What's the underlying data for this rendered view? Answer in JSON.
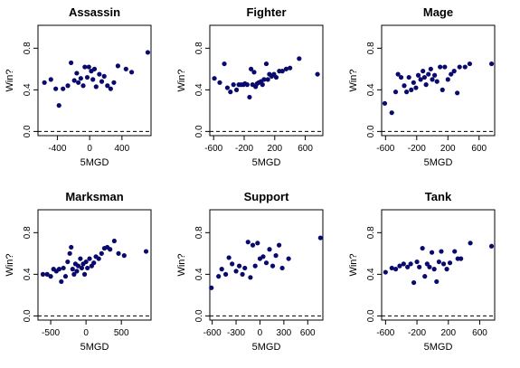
{
  "chart_data": [
    {
      "type": "scatter",
      "title": "Assassin",
      "xlabel": "5MGD",
      "ylabel": "Win?",
      "xticks": [
        -400,
        0,
        400
      ],
      "yticks": [
        0.0,
        0.4,
        0.8
      ],
      "xlim": [
        -640,
        760
      ],
      "ylim": [
        -0.04,
        1.02
      ],
      "reference_line": 0.0,
      "points": [
        [
          -560,
          0.47
        ],
        [
          -480,
          0.5
        ],
        [
          -420,
          0.41
        ],
        [
          -380,
          0.25
        ],
        [
          -330,
          0.41
        ],
        [
          -270,
          0.44
        ],
        [
          -230,
          0.66
        ],
        [
          -190,
          0.49
        ],
        [
          -160,
          0.56
        ],
        [
          -140,
          0.47
        ],
        [
          -110,
          0.51
        ],
        [
          -80,
          0.44
        ],
        [
          -60,
          0.62
        ],
        [
          -30,
          0.52
        ],
        [
          -10,
          0.62
        ],
        [
          20,
          0.58
        ],
        [
          40,
          0.5
        ],
        [
          60,
          0.6
        ],
        [
          80,
          0.43
        ],
        [
          120,
          0.55
        ],
        [
          150,
          0.48
        ],
        [
          180,
          0.53
        ],
        [
          220,
          0.44
        ],
        [
          260,
          0.41
        ],
        [
          300,
          0.47
        ],
        [
          350,
          0.63
        ],
        [
          450,
          0.6
        ],
        [
          520,
          0.57
        ],
        [
          720,
          0.76
        ]
      ]
    },
    {
      "type": "scatter",
      "title": "Fighter",
      "xlabel": "5MGD",
      "ylabel": "Win?",
      "xticks": [
        -600,
        -200,
        200,
        600
      ],
      "yticks": [
        0.0,
        0.4,
        0.8
      ],
      "xlim": [
        -650,
        830
      ],
      "ylim": [
        -0.04,
        1.02
      ],
      "reference_line": 0.0,
      "points": [
        [
          -590,
          0.51
        ],
        [
          -520,
          0.47
        ],
        [
          -460,
          0.65
        ],
        [
          -420,
          0.42
        ],
        [
          -380,
          0.38
        ],
        [
          -340,
          0.45
        ],
        [
          -300,
          0.4
        ],
        [
          -270,
          0.45
        ],
        [
          -240,
          0.45
        ],
        [
          -210,
          0.45
        ],
        [
          -190,
          0.46
        ],
        [
          -160,
          0.45
        ],
        [
          -130,
          0.33
        ],
        [
          -110,
          0.6
        ],
        [
          -90,
          0.45
        ],
        [
          -70,
          0.57
        ],
        [
          -50,
          0.43
        ],
        [
          -30,
          0.46
        ],
        [
          -10,
          0.47
        ],
        [
          20,
          0.48
        ],
        [
          40,
          0.45
        ],
        [
          60,
          0.5
        ],
        [
          90,
          0.65
        ],
        [
          110,
          0.5
        ],
        [
          130,
          0.55
        ],
        [
          160,
          0.53
        ],
        [
          190,
          0.55
        ],
        [
          220,
          0.52
        ],
        [
          260,
          0.58
        ],
        [
          300,
          0.58
        ],
        [
          350,
          0.6
        ],
        [
          400,
          0.61
        ],
        [
          520,
          0.7
        ],
        [
          760,
          0.55
        ]
      ]
    },
    {
      "type": "scatter",
      "title": "Mage",
      "xlabel": "5MGD",
      "ylabel": "Win?",
      "xticks": [
        -600,
        -200,
        200,
        600
      ],
      "yticks": [
        0.0,
        0.4,
        0.8
      ],
      "xlim": [
        -650,
        800
      ],
      "ylim": [
        -0.04,
        1.02
      ],
      "reference_line": 0.0,
      "points": [
        [
          -610,
          0.27
        ],
        [
          -520,
          0.18
        ],
        [
          -470,
          0.38
        ],
        [
          -440,
          0.55
        ],
        [
          -400,
          0.52
        ],
        [
          -360,
          0.44
        ],
        [
          -330,
          0.38
        ],
        [
          -300,
          0.52
        ],
        [
          -270,
          0.4
        ],
        [
          -240,
          0.47
        ],
        [
          -210,
          0.42
        ],
        [
          -180,
          0.54
        ],
        [
          -150,
          0.5
        ],
        [
          -120,
          0.58
        ],
        [
          -100,
          0.52
        ],
        [
          -80,
          0.45
        ],
        [
          -50,
          0.55
        ],
        [
          -20,
          0.6
        ],
        [
          0,
          0.5
        ],
        [
          30,
          0.54
        ],
        [
          60,
          0.48
        ],
        [
          100,
          0.62
        ],
        [
          130,
          0.4
        ],
        [
          160,
          0.62
        ],
        [
          200,
          0.5
        ],
        [
          240,
          0.55
        ],
        [
          280,
          0.58
        ],
        [
          320,
          0.37
        ],
        [
          350,
          0.62
        ],
        [
          420,
          0.62
        ],
        [
          480,
          0.65
        ],
        [
          760,
          0.65
        ]
      ]
    },
    {
      "type": "scatter",
      "title": "Marksman",
      "xlabel": "5MGD",
      "ylabel": "Win?",
      "xticks": [
        -500,
        0,
        500
      ],
      "yticks": [
        0.0,
        0.4,
        0.8
      ],
      "xlim": [
        -680,
        920
      ],
      "ylim": [
        -0.04,
        1.02
      ],
      "reference_line": 0.0,
      "points": [
        [
          -610,
          0.4
        ],
        [
          -550,
          0.4
        ],
        [
          -500,
          0.38
        ],
        [
          -460,
          0.45
        ],
        [
          -420,
          0.43
        ],
        [
          -380,
          0.45
        ],
        [
          -350,
          0.33
        ],
        [
          -320,
          0.46
        ],
        [
          -290,
          0.38
        ],
        [
          -260,
          0.52
        ],
        [
          -230,
          0.6
        ],
        [
          -210,
          0.66
        ],
        [
          -190,
          0.45
        ],
        [
          -170,
          0.4
        ],
        [
          -150,
          0.5
        ],
        [
          -130,
          0.43
        ],
        [
          -110,
          0.48
        ],
        [
          -80,
          0.55
        ],
        [
          -60,
          0.46
        ],
        [
          -40,
          0.5
        ],
        [
          -20,
          0.4
        ],
        [
          0,
          0.52
        ],
        [
          20,
          0.46
        ],
        [
          50,
          0.55
        ],
        [
          80,
          0.48
        ],
        [
          110,
          0.51
        ],
        [
          140,
          0.57
        ],
        [
          180,
          0.55
        ],
        [
          220,
          0.6
        ],
        [
          260,
          0.65
        ],
        [
          300,
          0.66
        ],
        [
          340,
          0.64
        ],
        [
          400,
          0.72
        ],
        [
          460,
          0.6
        ],
        [
          540,
          0.58
        ],
        [
          850,
          0.62
        ]
      ]
    },
    {
      "type": "scatter",
      "title": "Support",
      "xlabel": "5MGD",
      "ylabel": "Win?",
      "xticks": [
        -600,
        -300,
        0,
        300,
        600
      ],
      "yticks": [
        0.0,
        0.4,
        0.8
      ],
      "xlim": [
        -630,
        790
      ],
      "ylim": [
        -0.04,
        1.02
      ],
      "reference_line": 0.0,
      "points": [
        [
          -610,
          0.27
        ],
        [
          -520,
          0.38
        ],
        [
          -480,
          0.45
        ],
        [
          -430,
          0.4
        ],
        [
          -390,
          0.56
        ],
        [
          -350,
          0.5
        ],
        [
          -300,
          0.43
        ],
        [
          -260,
          0.48
        ],
        [
          -220,
          0.4
        ],
        [
          -190,
          0.46
        ],
        [
          -150,
          0.71
        ],
        [
          -120,
          0.37
        ],
        [
          -90,
          0.68
        ],
        [
          -60,
          0.48
        ],
        [
          -30,
          0.7
        ],
        [
          0,
          0.55
        ],
        [
          40,
          0.57
        ],
        [
          80,
          0.51
        ],
        [
          120,
          0.64
        ],
        [
          160,
          0.48
        ],
        [
          200,
          0.58
        ],
        [
          240,
          0.68
        ],
        [
          280,
          0.46
        ],
        [
          360,
          0.55
        ],
        [
          760,
          0.75
        ]
      ]
    },
    {
      "type": "scatter",
      "title": "Tank",
      "xlabel": "5MGD",
      "ylabel": "Win?",
      "xticks": [
        -600,
        -200,
        200,
        600
      ],
      "yticks": [
        0.0,
        0.4,
        0.8
      ],
      "xlim": [
        -650,
        790
      ],
      "ylim": [
        -0.04,
        1.02
      ],
      "reference_line": 0.0,
      "points": [
        [
          -600,
          0.42
        ],
        [
          -520,
          0.46
        ],
        [
          -470,
          0.45
        ],
        [
          -420,
          0.48
        ],
        [
          -370,
          0.5
        ],
        [
          -320,
          0.47
        ],
        [
          -280,
          0.5
        ],
        [
          -240,
          0.32
        ],
        [
          -200,
          0.52
        ],
        [
          -170,
          0.47
        ],
        [
          -130,
          0.65
        ],
        [
          -100,
          0.38
        ],
        [
          -70,
          0.5
        ],
        [
          -40,
          0.47
        ],
        [
          -10,
          0.61
        ],
        [
          20,
          0.45
        ],
        [
          50,
          0.33
        ],
        [
          80,
          0.52
        ],
        [
          110,
          0.62
        ],
        [
          140,
          0.5
        ],
        [
          180,
          0.45
        ],
        [
          220,
          0.51
        ],
        [
          280,
          0.62
        ],
        [
          320,
          0.55
        ],
        [
          360,
          0.55
        ],
        [
          480,
          0.7
        ],
        [
          750,
          0.67
        ]
      ]
    }
  ]
}
